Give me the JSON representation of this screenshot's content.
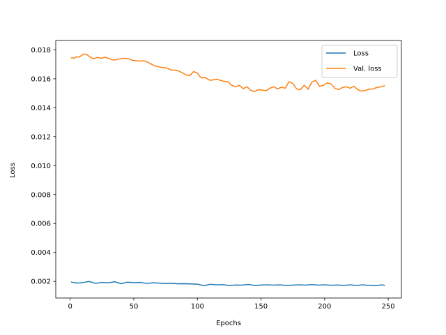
{
  "chart_data": {
    "type": "line",
    "title": "",
    "xlabel": "Epochs",
    "ylabel": "Loss",
    "xlim": [
      -11.35,
      260.35
    ],
    "ylim": [
      0.00085,
      0.01865
    ],
    "xticks": [
      0,
      50,
      100,
      150,
      200,
      250
    ],
    "xtick_labels": [
      "0",
      "50",
      "100",
      "150",
      "200",
      "250"
    ],
    "yticks": [
      0.002,
      0.004,
      0.006,
      0.008,
      0.01,
      0.012,
      0.014,
      0.016,
      0.018
    ],
    "ytick_labels": [
      "0.002",
      "0.004",
      "0.006",
      "0.008",
      "0.010",
      "0.012",
      "0.014",
      "0.016",
      "0.018"
    ],
    "grid": false,
    "legend_position": "upper right",
    "series": [
      {
        "name": "Loss",
        "color": "#1f77b4",
        "x": [
          1,
          5,
          10,
          15,
          20,
          25,
          30,
          35,
          40,
          45,
          50,
          55,
          60,
          65,
          70,
          75,
          80,
          85,
          90,
          95,
          100,
          105,
          110,
          115,
          120,
          125,
          130,
          135,
          140,
          145,
          150,
          155,
          160,
          165,
          170,
          175,
          180,
          185,
          190,
          195,
          200,
          205,
          210,
          215,
          220,
          225,
          230,
          235,
          240,
          245,
          247
        ],
        "y": [
          0.00195,
          0.00188,
          0.00192,
          0.00199,
          0.00186,
          0.00193,
          0.0019,
          0.00197,
          0.00184,
          0.00195,
          0.00191,
          0.00193,
          0.00186,
          0.0019,
          0.00188,
          0.00185,
          0.00187,
          0.00183,
          0.00184,
          0.00182,
          0.00181,
          0.0017,
          0.0018,
          0.00176,
          0.00177,
          0.00171,
          0.00175,
          0.00174,
          0.00179,
          0.00172,
          0.00175,
          0.00176,
          0.00174,
          0.00176,
          0.00171,
          0.00174,
          0.00176,
          0.00174,
          0.00178,
          0.00174,
          0.00176,
          0.00173,
          0.00175,
          0.00172,
          0.00176,
          0.00172,
          0.00176,
          0.00172,
          0.0017,
          0.00176,
          0.00173
        ]
      },
      {
        "name": "Val. loss",
        "color": "#ff7f0e",
        "x": [
          1,
          3,
          5,
          7,
          9,
          11,
          13,
          15,
          17,
          19,
          21,
          23,
          25,
          27,
          29,
          31,
          33,
          35,
          37,
          40,
          43,
          46,
          49,
          52,
          55,
          58,
          61,
          64,
          67,
          70,
          73,
          76,
          79,
          82,
          85,
          88,
          91,
          94,
          97,
          100,
          102,
          104,
          106,
          108,
          110,
          112,
          115,
          118,
          121,
          124,
          127,
          130,
          133,
          136,
          139,
          142,
          145,
          148,
          151,
          154,
          157,
          160,
          163,
          166,
          169,
          172,
          175,
          178,
          181,
          184,
          187,
          190,
          193,
          196,
          199,
          202,
          205,
          208,
          211,
          214,
          217,
          220,
          223,
          226,
          229,
          232,
          235,
          238,
          241,
          244,
          247
        ],
        "y": [
          0.01745,
          0.01742,
          0.01752,
          0.0175,
          0.01762,
          0.01772,
          0.01768,
          0.01755,
          0.01743,
          0.0174,
          0.01748,
          0.01745,
          0.01742,
          0.0175,
          0.01745,
          0.01738,
          0.01732,
          0.0173,
          0.01735,
          0.0174,
          0.01742,
          0.01738,
          0.01728,
          0.01725,
          0.01722,
          0.01725,
          0.01715,
          0.017,
          0.01688,
          0.01682,
          0.01678,
          0.01675,
          0.01662,
          0.0166,
          0.01655,
          0.01642,
          0.01628,
          0.01622,
          0.0165,
          0.0164,
          0.01615,
          0.01605,
          0.0161,
          0.01598,
          0.0159,
          0.01592,
          0.01598,
          0.0159,
          0.01582,
          0.0158,
          0.01555,
          0.01545,
          0.01555,
          0.01532,
          0.01545,
          0.0152,
          0.01512,
          0.01525,
          0.01522,
          0.01518,
          0.01535,
          0.01545,
          0.0153,
          0.01542,
          0.01535,
          0.0158,
          0.01568,
          0.0153,
          0.01525,
          0.01555,
          0.01528,
          0.01578,
          0.0159,
          0.01548,
          0.01555,
          0.01572,
          0.01565,
          0.01535,
          0.01525,
          0.0154,
          0.01545,
          0.01535,
          0.01548,
          0.01525,
          0.01515,
          0.0152,
          0.01528,
          0.0153,
          0.0154,
          0.01545,
          0.01552
        ]
      }
    ]
  }
}
